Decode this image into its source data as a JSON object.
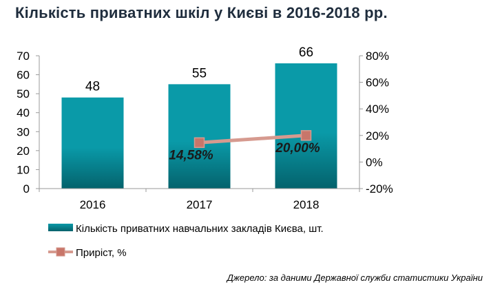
{
  "title": "Кількість приватних шкіл у Києві в 2016-2018 рр.",
  "source": "Джерело: за даними Державної служби статистики України",
  "colors": {
    "bar": "#0a9aa8",
    "bar_dark": "#04626c",
    "line": "#d69a8f",
    "marker": "#c8766a",
    "axis": "#9a9a9a",
    "title": "#1f2d3d"
  },
  "chart_data": {
    "type": "bar",
    "title": "Кількість приватних шкіл у Києві в 2016-2018 рр.",
    "categories": [
      "2016",
      "2017",
      "2018"
    ],
    "series": [
      {
        "name": "Кількість приватних навчальних закладів Києва, шт.",
        "type": "bar",
        "axis": "left",
        "values": [
          48,
          55,
          66
        ],
        "labels": [
          "48",
          "55",
          "66"
        ]
      },
      {
        "name": "Приріст, %",
        "type": "line",
        "axis": "right",
        "x": [
          "2017",
          "2018"
        ],
        "values": [
          14.58,
          20.0
        ],
        "labels": [
          "14,58%",
          "20,00%"
        ]
      }
    ],
    "y_left": {
      "lim": [
        0,
        70
      ],
      "ticks": [
        "0",
        "10",
        "20",
        "30",
        "40",
        "50",
        "60",
        "70"
      ]
    },
    "y_right": {
      "lim": [
        -20,
        80
      ],
      "ticks": [
        "-20%",
        "0%",
        "20%",
        "40%",
        "60%",
        "80%"
      ]
    },
    "grid": false,
    "legend_position": "bottom-left"
  }
}
